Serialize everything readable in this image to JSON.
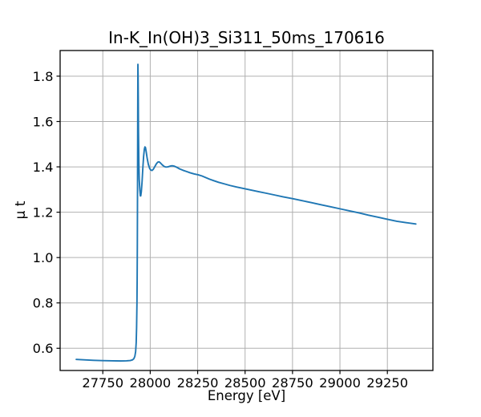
{
  "figure": {
    "title": "In-K_In(OH)3_Si311_50ms_170616",
    "xlabel": "Energy [eV]",
    "ylabel": "μ t"
  },
  "chart_data": {
    "type": "line",
    "title": "In-K_In(OH)3_Si311_50ms_170616",
    "xlabel": "Energy [eV]",
    "ylabel": "μ t",
    "xlim": [
      27525,
      29490
    ],
    "ylim": [
      0.502,
      1.913
    ],
    "xticks": [
      27750,
      28000,
      28250,
      28500,
      28750,
      29000,
      29250
    ],
    "xtick_labels": [
      "27750",
      "28000",
      "28250",
      "28500",
      "28750",
      "29000",
      "29250"
    ],
    "yticks": [
      0.6,
      0.8,
      1.0,
      1.2,
      1.4,
      1.6,
      1.8
    ],
    "ytick_labels": [
      "0.6",
      "0.8",
      "1.0",
      "1.2",
      "1.4",
      "1.6",
      "1.8"
    ],
    "grid": true,
    "legend": false,
    "line_color": "#1f77b4",
    "grid_color": "#b0b0b0",
    "series": [
      {
        "points": [
          [
            27610,
            0.551
          ],
          [
            27650,
            0.549
          ],
          [
            27700,
            0.547
          ],
          [
            27750,
            0.5455
          ],
          [
            27800,
            0.5445
          ],
          [
            27845,
            0.544
          ],
          [
            27875,
            0.5445
          ],
          [
            27895,
            0.546
          ],
          [
            27907,
            0.549
          ],
          [
            27914,
            0.5545
          ],
          [
            27919,
            0.565
          ],
          [
            27923,
            0.585
          ],
          [
            27926,
            0.625
          ],
          [
            27928,
            0.69
          ],
          [
            27930,
            0.8
          ],
          [
            27931,
            0.9
          ],
          [
            27932,
            1.05
          ],
          [
            27933,
            1.3
          ],
          [
            27934,
            1.62
          ],
          [
            27935,
            1.852
          ],
          [
            27936,
            1.8
          ],
          [
            27937,
            1.7
          ],
          [
            27938,
            1.56
          ],
          [
            27940,
            1.42
          ],
          [
            27942,
            1.345
          ],
          [
            27945,
            1.3
          ],
          [
            27948,
            1.272
          ],
          [
            27950,
            1.272
          ],
          [
            27953,
            1.29
          ],
          [
            27957,
            1.335
          ],
          [
            27961,
            1.395
          ],
          [
            27965,
            1.445
          ],
          [
            27969,
            1.478
          ],
          [
            27972,
            1.488
          ],
          [
            27975,
            1.485
          ],
          [
            27979,
            1.465
          ],
          [
            27984,
            1.437
          ],
          [
            27990,
            1.411
          ],
          [
            27997,
            1.393
          ],
          [
            28003,
            1.386
          ],
          [
            28009,
            1.384
          ],
          [
            28016,
            1.389
          ],
          [
            28024,
            1.401
          ],
          [
            28032,
            1.413
          ],
          [
            28040,
            1.421
          ],
          [
            28047,
            1.422
          ],
          [
            28054,
            1.417
          ],
          [
            28063,
            1.409
          ],
          [
            28073,
            1.402
          ],
          [
            28083,
            1.399
          ],
          [
            28093,
            1.4
          ],
          [
            28104,
            1.403
          ],
          [
            28115,
            1.405
          ],
          [
            28127,
            1.403
          ],
          [
            28140,
            1.398
          ],
          [
            28155,
            1.391
          ],
          [
            28172,
            1.385
          ],
          [
            28190,
            1.38
          ],
          [
            28210,
            1.374
          ],
          [
            28230,
            1.369
          ],
          [
            28252,
            1.365
          ],
          [
            28272,
            1.36
          ],
          [
            28292,
            1.353
          ],
          [
            28312,
            1.346
          ],
          [
            28335,
            1.339
          ],
          [
            28360,
            1.332
          ],
          [
            28390,
            1.325
          ],
          [
            28420,
            1.318
          ],
          [
            28455,
            1.311
          ],
          [
            28490,
            1.305
          ],
          [
            28530,
            1.298
          ],
          [
            28570,
            1.291
          ],
          [
            28610,
            1.284
          ],
          [
            28655,
            1.276
          ],
          [
            28700,
            1.268
          ],
          [
            28750,
            1.26
          ],
          [
            28800,
            1.251
          ],
          [
            28850,
            1.242
          ],
          [
            28900,
            1.233
          ],
          [
            28950,
            1.224
          ],
          [
            29000,
            1.215
          ],
          [
            29050,
            1.206
          ],
          [
            29100,
            1.197
          ],
          [
            29150,
            1.187
          ],
          [
            29200,
            1.178
          ],
          [
            29250,
            1.169
          ],
          [
            29300,
            1.16
          ],
          [
            29350,
            1.154
          ],
          [
            29400,
            1.148
          ]
        ]
      }
    ]
  }
}
